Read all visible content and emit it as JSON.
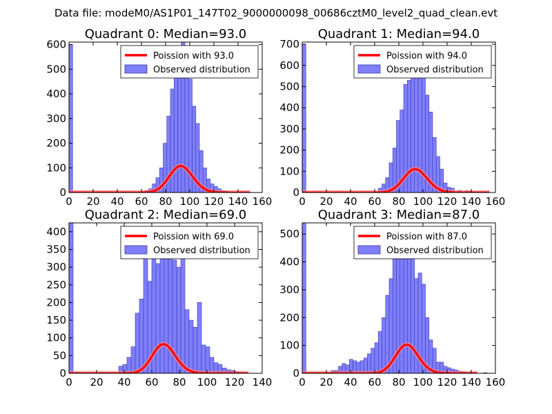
{
  "figure": {
    "title": "Data file: modeM0/AS1P01_147T02_9000000098_00686cztM0_level2_quad_clean.evt",
    "colors": {
      "hist": "#7f7fff",
      "hist_edge": "#3a3aa0",
      "curve": "#ff0000",
      "curve_glow": "#ff8080"
    }
  },
  "chart_data": [
    {
      "type": "bar",
      "title": "Quadrant 0: Median=93.0",
      "legend": {
        "curve": "Poission with 93.0",
        "hist": "Observed distribution",
        "placement": "upper-right"
      },
      "xlim": [
        0,
        160
      ],
      "ylim": [
        0,
        610
      ],
      "xticks": [
        "0",
        "20",
        "40",
        "60",
        "80",
        "100",
        "120",
        "140",
        "160"
      ],
      "yticks": [
        "0",
        "100",
        "200",
        "300",
        "400",
        "500",
        "600"
      ],
      "mean": 93.0,
      "bin_width": 3,
      "curve_scale": 2600,
      "curve_range": [
        0,
        150
      ],
      "bins": [
        [
          0,
          600
        ],
        [
          63,
          8
        ],
        [
          66,
          15
        ],
        [
          69,
          35
        ],
        [
          72,
          60
        ],
        [
          75,
          100
        ],
        [
          78,
          200
        ],
        [
          81,
          310
        ],
        [
          84,
          420
        ],
        [
          87,
          540
        ],
        [
          90,
          580
        ],
        [
          93,
          610
        ],
        [
          96,
          530
        ],
        [
          99,
          460
        ],
        [
          102,
          350
        ],
        [
          105,
          280
        ],
        [
          108,
          170
        ],
        [
          111,
          100
        ],
        [
          114,
          55
        ],
        [
          117,
          35
        ],
        [
          120,
          25
        ],
        [
          123,
          15
        ],
        [
          126,
          8
        ],
        [
          129,
          5
        ],
        [
          135,
          3
        ],
        [
          147,
          2
        ]
      ]
    },
    {
      "type": "bar",
      "title": "Quadrant 1: Median=94.0",
      "legend": {
        "curve": "Poission with 94.0",
        "hist": "Observed distribution",
        "placement": "upper-right"
      },
      "xlim": [
        0,
        160
      ],
      "ylim": [
        0,
        710
      ],
      "xticks": [
        "0",
        "20",
        "40",
        "60",
        "80",
        "100",
        "120",
        "140",
        "160"
      ],
      "yticks": [
        "0",
        "100",
        "200",
        "300",
        "400",
        "500",
        "600",
        "700"
      ],
      "mean": 94.0,
      "bin_width": 3,
      "curve_scale": 2680,
      "curve_range": [
        0,
        155
      ],
      "bins": [
        [
          0,
          700
        ],
        [
          63,
          20
        ],
        [
          66,
          40
        ],
        [
          69,
          70
        ],
        [
          72,
          140
        ],
        [
          75,
          210
        ],
        [
          78,
          340
        ],
        [
          81,
          390
        ],
        [
          84,
          510
        ],
        [
          87,
          530
        ],
        [
          90,
          670
        ],
        [
          93,
          590
        ],
        [
          96,
          540
        ],
        [
          99,
          640
        ],
        [
          102,
          460
        ],
        [
          105,
          380
        ],
        [
          108,
          260
        ],
        [
          111,
          170
        ],
        [
          114,
          110
        ],
        [
          117,
          45
        ],
        [
          120,
          25
        ],
        [
          123,
          20
        ],
        [
          129,
          10
        ],
        [
          135,
          8
        ],
        [
          138,
          5
        ]
      ]
    },
    {
      "type": "bar",
      "title": "Quadrant 2: Median=69.0",
      "legend": {
        "curve": "Poission with 69.0",
        "hist": "Observed distribution",
        "placement": "upper-right"
      },
      "xlim": [
        0,
        140
      ],
      "ylim": [
        0,
        425
      ],
      "xticks": [
        "0",
        "20",
        "40",
        "60",
        "80",
        "100",
        "120",
        "140"
      ],
      "yticks": [
        "0",
        "50",
        "100",
        "150",
        "200",
        "250",
        "300",
        "350",
        "400"
      ],
      "mean": 69.0,
      "bin_width": 3,
      "curve_scale": 1710,
      "curve_range": [
        0,
        130
      ],
      "bins": [
        [
          0,
          425
        ],
        [
          36,
          20
        ],
        [
          39,
          25
        ],
        [
          42,
          45
        ],
        [
          45,
          75
        ],
        [
          48,
          170
        ],
        [
          51,
          210
        ],
        [
          54,
          340
        ],
        [
          57,
          260
        ],
        [
          60,
          380
        ],
        [
          63,
          310
        ],
        [
          66,
          400
        ],
        [
          69,
          400
        ],
        [
          72,
          360
        ],
        [
          75,
          320
        ],
        [
          78,
          300
        ],
        [
          81,
          380
        ],
        [
          84,
          180
        ],
        [
          87,
          150
        ],
        [
          90,
          130
        ],
        [
          93,
          200
        ],
        [
          96,
          80
        ],
        [
          99,
          75
        ],
        [
          102,
          45
        ],
        [
          105,
          30
        ],
        [
          108,
          25
        ],
        [
          111,
          15
        ],
        [
          114,
          10
        ],
        [
          117,
          8
        ],
        [
          120,
          5
        ],
        [
          123,
          2
        ]
      ]
    },
    {
      "type": "bar",
      "title": "Quadrant 3: Median=87.0",
      "legend": {
        "curve": "Poission with 87.0",
        "hist": "Observed distribution",
        "placement": "upper-right"
      },
      "xlim": [
        0,
        160
      ],
      "ylim": [
        0,
        540
      ],
      "xticks": [
        "0",
        "20",
        "40",
        "60",
        "80",
        "100",
        "120",
        "140",
        "160"
      ],
      "yticks": [
        "0",
        "100",
        "200",
        "300",
        "400",
        "500"
      ],
      "mean": 87.0,
      "bin_width": 3,
      "curve_scale": 2400,
      "curve_range": [
        0,
        145
      ],
      "bins": [
        [
          0,
          540
        ],
        [
          24,
          10
        ],
        [
          27,
          10
        ],
        [
          30,
          25
        ],
        [
          33,
          35
        ],
        [
          36,
          30
        ],
        [
          39,
          50
        ],
        [
          42,
          45
        ],
        [
          45,
          40
        ],
        [
          48,
          45
        ],
        [
          51,
          55
        ],
        [
          54,
          70
        ],
        [
          57,
          90
        ],
        [
          60,
          110
        ],
        [
          63,
          150
        ],
        [
          66,
          200
        ],
        [
          69,
          280
        ],
        [
          72,
          340
        ],
        [
          75,
          420
        ],
        [
          78,
          510
        ],
        [
          81,
          490
        ],
        [
          84,
          500
        ],
        [
          87,
          520
        ],
        [
          90,
          420
        ],
        [
          93,
          340
        ],
        [
          96,
          360
        ],
        [
          99,
          320
        ],
        [
          102,
          200
        ],
        [
          105,
          120
        ],
        [
          108,
          90
        ],
        [
          111,
          40
        ],
        [
          114,
          40
        ],
        [
          117,
          25
        ],
        [
          120,
          20
        ],
        [
          123,
          15
        ],
        [
          126,
          12
        ],
        [
          129,
          8
        ],
        [
          132,
          5
        ],
        [
          135,
          3
        ],
        [
          141,
          2
        ],
        [
          150,
          2
        ]
      ]
    }
  ]
}
